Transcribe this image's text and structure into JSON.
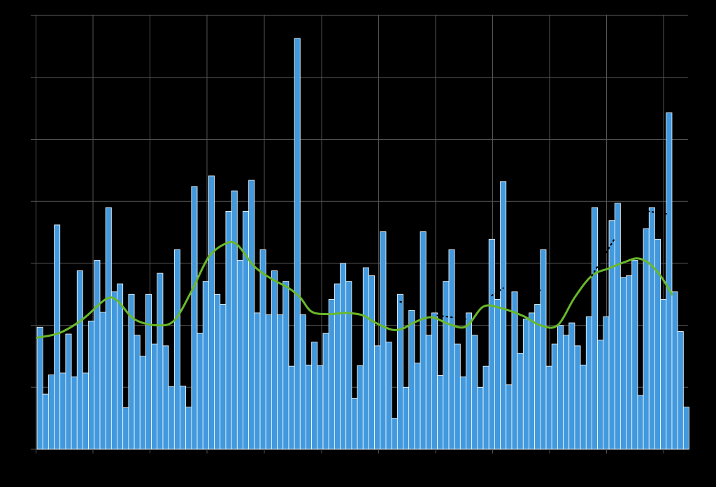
{
  "chart_data": {
    "type": "bar",
    "title": "",
    "xlabel": "",
    "ylabel": "",
    "grid": true,
    "ylim": [
      0,
      7
    ],
    "xlim": [
      0,
      114
    ],
    "colors": {
      "background": "#000000",
      "grid": "#555555",
      "bar_fill": "#4299dd",
      "bar_stroke": "#ffffff",
      "smooth_line": "#6ab82a",
      "dotted_line": "#000000"
    },
    "series": [
      {
        "type": "bar",
        "values": [
          1.97,
          0.89,
          1.2,
          3.62,
          1.23,
          1.86,
          1.17,
          2.88,
          1.23,
          2.07,
          3.05,
          2.21,
          3.9,
          2.54,
          2.67,
          0.67,
          2.5,
          1.84,
          1.5,
          2.5,
          1.7,
          2.84,
          1.67,
          1.01,
          3.22,
          1.02,
          0.68,
          4.24,
          1.87,
          2.71,
          4.41,
          2.5,
          2.34,
          3.84,
          4.17,
          3.05,
          3.84,
          4.34,
          2.2,
          3.22,
          2.17,
          2.88,
          2.17,
          2.71,
          1.34,
          6.63,
          2.17,
          1.36,
          1.73,
          1.35,
          1.87,
          2.42,
          2.67,
          3.0,
          2.71,
          0.82,
          1.35,
          2.93,
          2.8,
          1.67,
          3.51,
          1.73,
          0.5,
          2.5,
          1.0,
          2.24,
          1.39,
          3.51,
          1.84,
          2.2,
          1.19,
          2.71,
          3.22,
          1.7,
          1.17,
          2.2,
          1.84,
          1.0,
          1.34,
          3.39,
          2.42,
          4.32,
          1.04,
          2.54,
          1.55,
          2.1,
          2.2,
          2.34,
          3.22,
          1.34,
          1.7,
          2.0,
          1.84,
          2.04,
          1.67,
          1.36,
          2.14,
          3.9,
          1.76,
          2.14,
          3.69,
          3.97,
          2.77,
          2.8,
          3.05,
          0.87,
          3.56,
          3.9,
          3.39,
          2.42,
          5.43,
          2.54,
          1.9,
          0.68
        ]
      },
      {
        "type": "smooth_line",
        "points": [
          [
            0,
            1.8
          ],
          [
            4,
            1.88
          ],
          [
            8,
            2.1
          ],
          [
            12,
            2.42
          ],
          [
            14,
            2.4
          ],
          [
            17,
            2.1
          ],
          [
            21,
            2.0
          ],
          [
            24,
            2.08
          ],
          [
            27,
            2.55
          ],
          [
            30,
            3.1
          ],
          [
            33,
            3.32
          ],
          [
            35,
            3.3
          ],
          [
            38,
            2.95
          ],
          [
            41,
            2.75
          ],
          [
            44,
            2.6
          ],
          [
            46,
            2.45
          ],
          [
            48,
            2.22
          ],
          [
            51,
            2.18
          ],
          [
            54,
            2.2
          ],
          [
            57,
            2.16
          ],
          [
            59,
            2.05
          ],
          [
            62,
            1.93
          ],
          [
            64,
            1.95
          ],
          [
            66,
            2.05
          ],
          [
            69,
            2.13
          ],
          [
            72,
            2.02
          ],
          [
            75,
            1.98
          ],
          [
            78,
            2.3
          ],
          [
            81,
            2.28
          ],
          [
            85,
            2.15
          ],
          [
            88,
            2.0
          ],
          [
            91,
            2.0
          ],
          [
            94,
            2.45
          ],
          [
            97,
            2.8
          ],
          [
            100,
            2.92
          ],
          [
            103,
            3.03
          ],
          [
            105,
            3.08
          ],
          [
            107,
            3.0
          ],
          [
            109,
            2.8
          ],
          [
            111,
            2.5
          ]
        ]
      },
      {
        "type": "dotted_segments",
        "segments": [
          [
            [
              63.5,
              2.38
            ],
            [
              67,
              2.3
            ]
          ],
          [
            [
              70,
              2.16
            ],
            [
              75,
              2.1
            ]
          ],
          [
            [
              79.5,
              2.48
            ],
            [
              81.5,
              2.6
            ]
          ],
          [
            [
              87,
              2.59
            ],
            [
              88.5,
              2.55
            ]
          ],
          [
            [
              97,
              2.8
            ],
            [
              101,
              3.4
            ]
          ],
          [
            [
              106,
              3.85
            ],
            [
              110,
              3.8
            ]
          ]
        ]
      }
    ]
  }
}
